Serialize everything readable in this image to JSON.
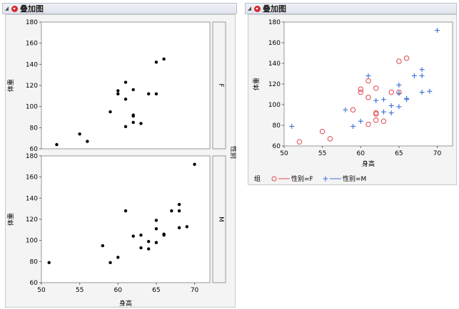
{
  "left": {
    "title": "叠加图",
    "ylabel": "体重",
    "xlabel": "身高",
    "group_label": "性别"
  },
  "right": {
    "title": "叠加图",
    "ylabel": "体重",
    "xlabel": "身高",
    "legend_title": "组",
    "legend_f": "性别=F",
    "legend_m": "性别=M"
  },
  "colors": {
    "female": "#e0474c",
    "male": "#3a6fd8",
    "point": "#000000"
  },
  "chart_data": [
    {
      "type": "scatter",
      "title": "叠加图",
      "xlabel": "身高",
      "ylabel": "体重",
      "xlim": [
        50,
        72
      ],
      "ylim": [
        60,
        180
      ],
      "xticks": [
        50,
        55,
        60,
        65,
        70
      ],
      "yticks": [
        60,
        80,
        100,
        120,
        140,
        160,
        180
      ],
      "panels": [
        {
          "name": "F",
          "points": [
            [
              52,
              64
            ],
            [
              55,
              74
            ],
            [
              56,
              67
            ],
            [
              59,
              95
            ],
            [
              60,
              115
            ],
            [
              60,
              112
            ],
            [
              61,
              123
            ],
            [
              61,
              107
            ],
            [
              61,
              81
            ],
            [
              62,
              116
            ],
            [
              62,
              92
            ],
            [
              62,
              91
            ],
            [
              62,
              85
            ],
            [
              63,
              84
            ],
            [
              64,
              112
            ],
            [
              65,
              112
            ],
            [
              65,
              142
            ],
            [
              66,
              145
            ]
          ]
        },
        {
          "name": "M",
          "points": [
            [
              51,
              79
            ],
            [
              58,
              95
            ],
            [
              59,
              79
            ],
            [
              60,
              84
            ],
            [
              61,
              128
            ],
            [
              62,
              104
            ],
            [
              63,
              105
            ],
            [
              63,
              93
            ],
            [
              64,
              99
            ],
            [
              64,
              92
            ],
            [
              65,
              119
            ],
            [
              65,
              111
            ],
            [
              65,
              98
            ],
            [
              66,
              106
            ],
            [
              66,
              105
            ],
            [
              67,
              128
            ],
            [
              68,
              134
            ],
            [
              68,
              128
            ],
            [
              68,
              112
            ],
            [
              69,
              113
            ],
            [
              70,
              172
            ]
          ]
        }
      ]
    },
    {
      "type": "scatter",
      "title": "叠加图",
      "xlabel": "身高",
      "ylabel": "体重",
      "xlim": [
        50,
        72
      ],
      "ylim": [
        60,
        180
      ],
      "xticks": [
        50,
        55,
        60,
        65,
        70
      ],
      "yticks": [
        60,
        80,
        100,
        120,
        140,
        160,
        180
      ],
      "legend_title": "组",
      "series": [
        {
          "name": "性别=F",
          "marker": "circle",
          "points": [
            [
              52,
              64
            ],
            [
              55,
              74
            ],
            [
              56,
              67
            ],
            [
              59,
              95
            ],
            [
              60,
              115
            ],
            [
              60,
              112
            ],
            [
              61,
              123
            ],
            [
              61,
              107
            ],
            [
              61,
              81
            ],
            [
              62,
              116
            ],
            [
              62,
              92
            ],
            [
              62,
              91
            ],
            [
              62,
              85
            ],
            [
              63,
              84
            ],
            [
              64,
              112
            ],
            [
              65,
              112
            ],
            [
              65,
              142
            ],
            [
              66,
              145
            ]
          ]
        },
        {
          "name": "性别=M",
          "marker": "plus",
          "points": [
            [
              51,
              79
            ],
            [
              58,
              95
            ],
            [
              59,
              79
            ],
            [
              60,
              84
            ],
            [
              61,
              128
            ],
            [
              62,
              104
            ],
            [
              63,
              105
            ],
            [
              63,
              93
            ],
            [
              64,
              99
            ],
            [
              64,
              92
            ],
            [
              65,
              119
            ],
            [
              65,
              111
            ],
            [
              65,
              98
            ],
            [
              66,
              106
            ],
            [
              66,
              105
            ],
            [
              67,
              128
            ],
            [
              68,
              134
            ],
            [
              68,
              128
            ],
            [
              68,
              112
            ],
            [
              69,
              113
            ],
            [
              70,
              172
            ]
          ]
        }
      ]
    }
  ]
}
